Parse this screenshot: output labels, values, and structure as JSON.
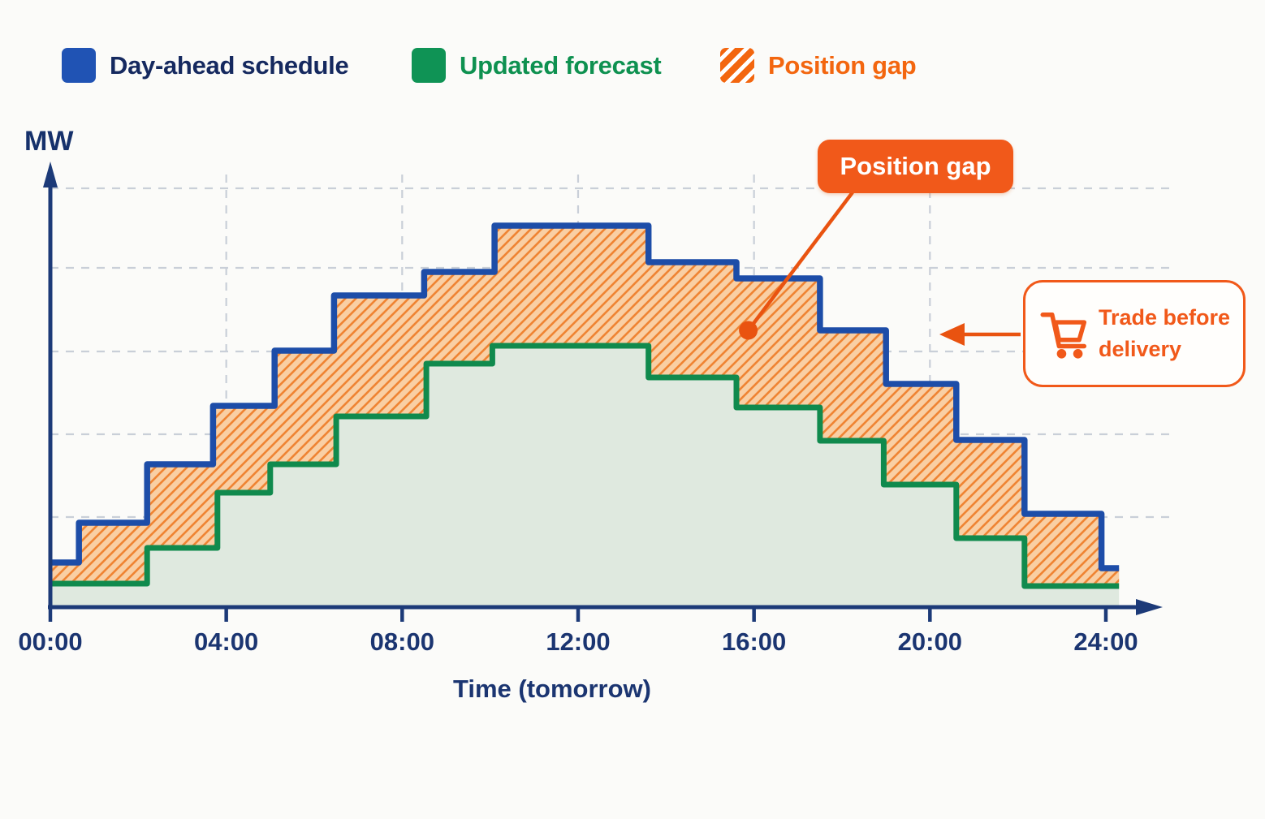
{
  "legend": {
    "items": [
      {
        "id": "day-ahead",
        "label": "Day-ahead schedule",
        "swatch": "solid",
        "color": "#2053b4",
        "text_color": "#15295f"
      },
      {
        "id": "updated-forecast",
        "label": "Updated forecast",
        "swatch": "solid",
        "color": "#0f9355",
        "text_color": "#0e9150"
      },
      {
        "id": "position-gap",
        "label": "Position gap",
        "swatch": "hatched",
        "color": "#f3660f",
        "text_color": "#f3660f"
      }
    ]
  },
  "chart_data": {
    "type": "step-area",
    "title": "",
    "ylabel": "MW",
    "xlabel": "Time (tomorrow)",
    "x_ticks": [
      "00:00",
      "04:00",
      "08:00",
      "12:00",
      "16:00",
      "20:00",
      "24:00"
    ],
    "x_tick_hours": [
      0,
      4,
      8,
      12,
      16,
      20,
      24
    ],
    "x_range_hours": [
      0,
      24.3
    ],
    "ylim_mw": [
      0,
      540
    ],
    "grid": {
      "h_lines_mw": [
        111,
        213,
        315,
        418,
        516
      ],
      "v_lines_hours": [
        4,
        8,
        12,
        16,
        20
      ]
    },
    "series": [
      {
        "name": "Day-ahead schedule",
        "color": "#1d4da8",
        "style": "step",
        "end_hour": 24.3,
        "steps": [
          [
            0,
            55
          ],
          [
            0.65,
            104
          ],
          [
            2.2,
            176
          ],
          [
            3.7,
            248
          ],
          [
            5.1,
            316
          ],
          [
            6.45,
            384
          ],
          [
            8.5,
            413
          ],
          [
            10.1,
            470
          ],
          [
            13.6,
            425
          ],
          [
            15.6,
            405
          ],
          [
            17.5,
            341
          ],
          [
            19.0,
            275
          ],
          [
            20.6,
            206
          ],
          [
            22.15,
            115
          ],
          [
            23.9,
            48
          ]
        ]
      },
      {
        "name": "Updated forecast",
        "color": "#108a4d",
        "style": "step",
        "fill_below": "#dfe9df",
        "end_hour": 24.3,
        "steps": [
          [
            0,
            29
          ],
          [
            2.2,
            73
          ],
          [
            3.8,
            141
          ],
          [
            5.0,
            176
          ],
          [
            6.5,
            235
          ],
          [
            8.55,
            300
          ],
          [
            10.05,
            322
          ],
          [
            13.6,
            283
          ],
          [
            15.6,
            246
          ],
          [
            17.5,
            205
          ],
          [
            18.95,
            151
          ],
          [
            20.6,
            85
          ],
          [
            22.15,
            26
          ]
        ]
      }
    ],
    "gap_area": {
      "name": "Position gap",
      "between": [
        "Day-ahead schedule",
        "Updated forecast"
      ],
      "fill": "#f9cfa4",
      "hatch_color": "#ef8433"
    }
  },
  "annotations": {
    "position_gap_label": {
      "text": "Position gap",
      "bg": "#f1591a",
      "text_color": "#ffffff",
      "dot_hour": 15.87,
      "dot_mw": 341,
      "line_color": "#e95310"
    },
    "trade_callout": {
      "text": "Trade before delivery",
      "color": "#f1591a",
      "icon": "shopping-cart",
      "arrow_direction": "left"
    }
  },
  "colors": {
    "background": "#fbfbf9",
    "axis": "#1b3571",
    "gridline": "#c9cfd8",
    "day_ahead_blue": "#1d4da8",
    "forecast_green": "#108a4d",
    "forecast_fill": "#dfe9df",
    "gap_orange_fill": "#f9cfa4",
    "gap_orange_stripe": "#ef8433",
    "accent_orange": "#f1591a"
  }
}
